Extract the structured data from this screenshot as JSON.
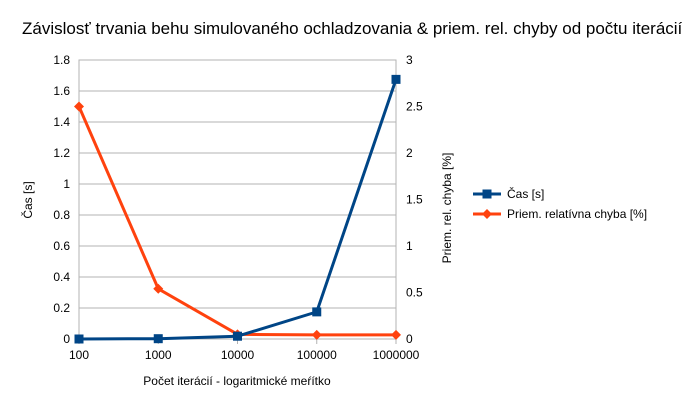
{
  "chart_data": {
    "type": "line",
    "title": "Závislosť trvania behu simulovaného ochladzovania & priem. rel. chyby od počtu iterácií",
    "xlabel": "Počet iterácií - logaritmické meŕítko",
    "ylabel_left": "Čas [s]",
    "ylabel_right": "Priem. rel. chyba [%]",
    "x_scale": "log",
    "categories": [
      "100",
      "1000",
      "10000",
      "100000",
      "1000000"
    ],
    "y_left": {
      "range": [
        0,
        1.8
      ],
      "ticks": [
        "0",
        "0.2",
        "0.4",
        "0.6",
        "0.8",
        "1",
        "1.2",
        "1.4",
        "1.6",
        "1.8"
      ]
    },
    "y_right": {
      "range": [
        0,
        3
      ],
      "ticks": [
        "0",
        "0.5",
        "1",
        "1.5",
        "2",
        "2.5",
        "3"
      ]
    },
    "grid": "horizontal",
    "legend_position": "right",
    "series": [
      {
        "name": "Čas [s]",
        "axis": "left",
        "color": "#004586",
        "marker": "square",
        "values": [
          0.0,
          0.002,
          0.018,
          0.175,
          1.675
        ]
      },
      {
        "name": "Priem. relatívna chyba [%]",
        "axis": "right",
        "color": "#ff420e",
        "marker": "diamond",
        "values": [
          2.5,
          0.54,
          0.05,
          0.045,
          0.045
        ]
      }
    ]
  }
}
